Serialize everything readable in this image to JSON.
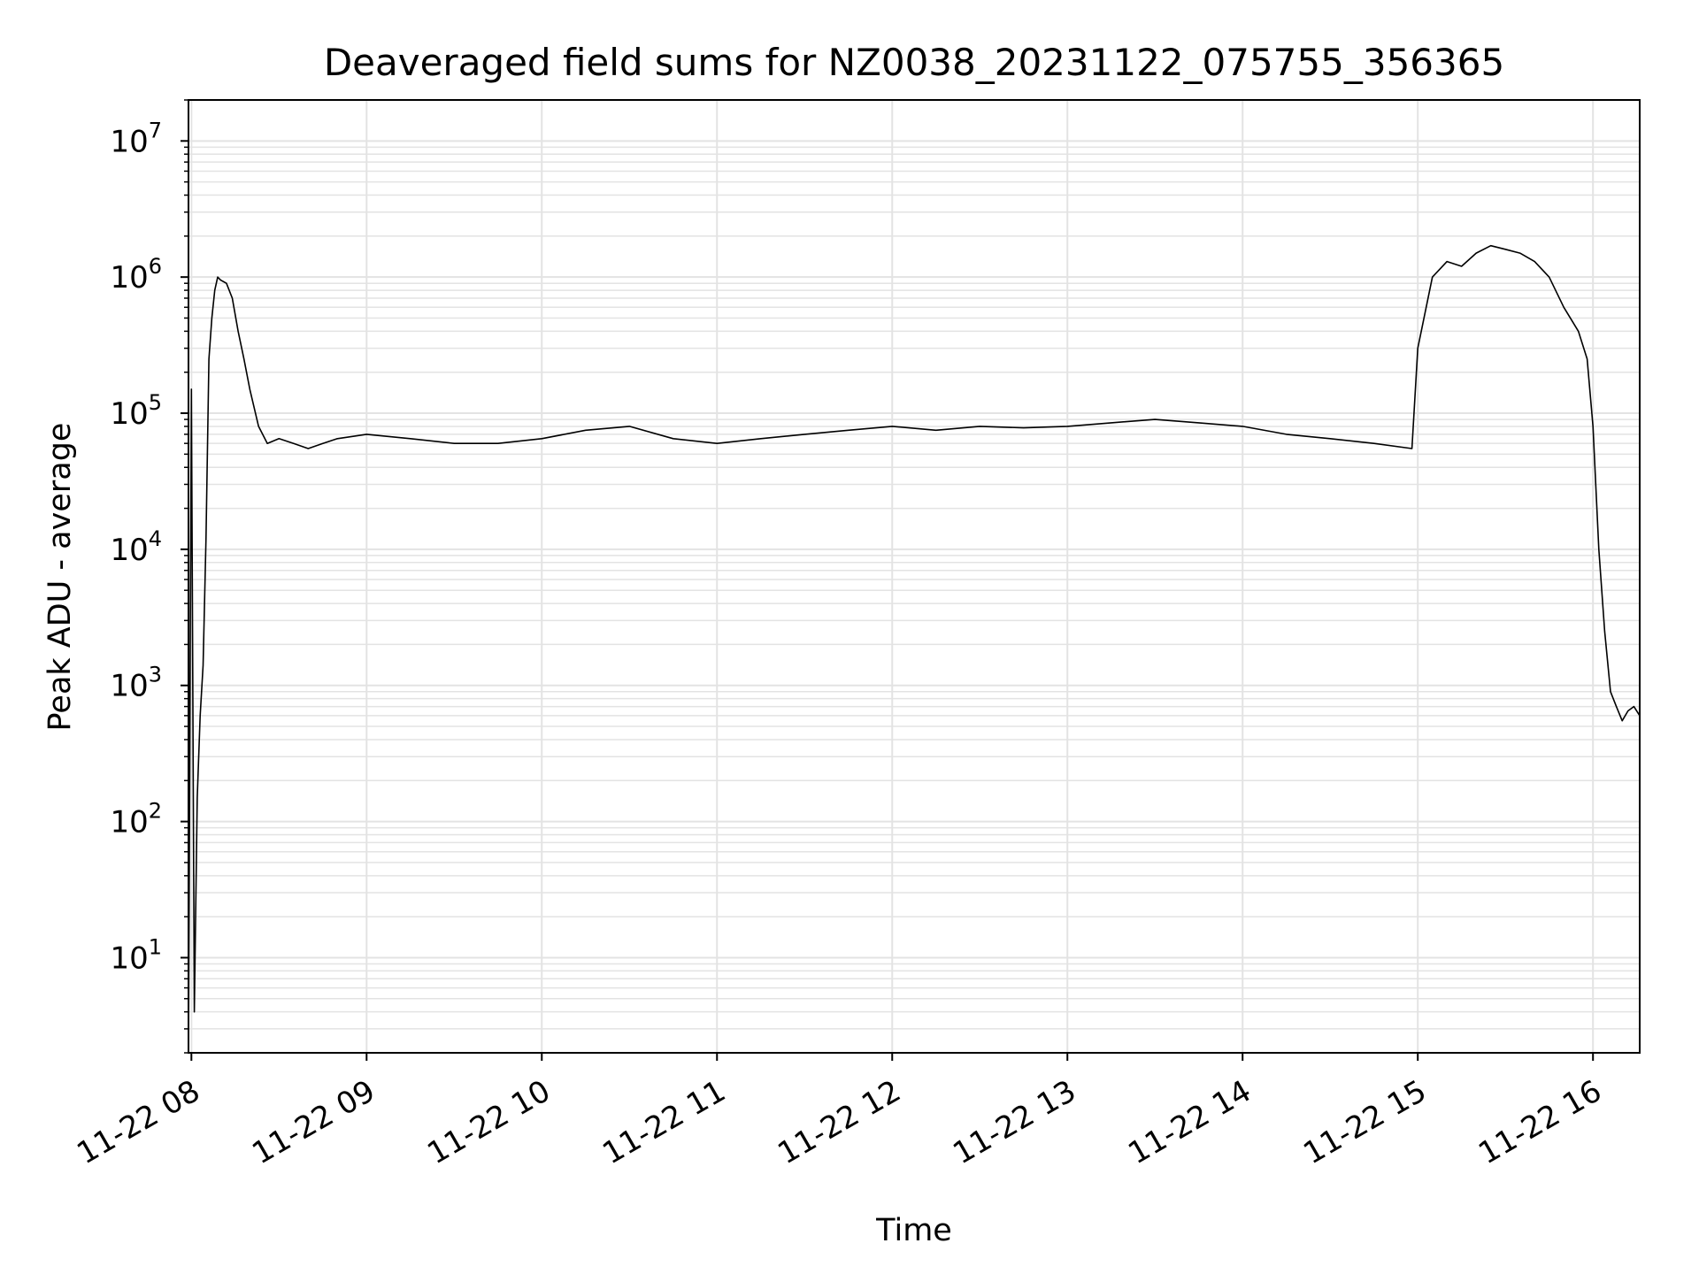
{
  "chart_data": {
    "type": "line",
    "title": "Deaveraged field sums for NZ0038_20231122_075755_356365",
    "xlabel": "Time",
    "ylabel": "Peak ADU - average",
    "yscale": "log",
    "xlim": [
      "2023-11-22 07:59",
      "2023-11-22 16:16"
    ],
    "ylim": [
      2,
      20000000
    ],
    "grid": true,
    "line_color": "#000000",
    "grid_color": "#e3e3e3",
    "x_ticks": [
      {
        "value": "2023-11-22 08:00",
        "label": "11-22 08"
      },
      {
        "value": "2023-11-22 09:00",
        "label": "11-22 09"
      },
      {
        "value": "2023-11-22 10:00",
        "label": "11-22 10"
      },
      {
        "value": "2023-11-22 11:00",
        "label": "11-22 11"
      },
      {
        "value": "2023-11-22 12:00",
        "label": "11-22 12"
      },
      {
        "value": "2023-11-22 13:00",
        "label": "11-22 13"
      },
      {
        "value": "2023-11-22 14:00",
        "label": "11-22 14"
      },
      {
        "value": "2023-11-22 15:00",
        "label": "11-22 15"
      },
      {
        "value": "2023-11-22 16:00",
        "label": "11-22 16"
      }
    ],
    "y_ticks": [
      {
        "value": 10,
        "base": "10",
        "exp": "1"
      },
      {
        "value": 100,
        "base": "10",
        "exp": "2"
      },
      {
        "value": 1000,
        "base": "10",
        "exp": "3"
      },
      {
        "value": 10000,
        "base": "10",
        "exp": "4"
      },
      {
        "value": 100000,
        "base": "10",
        "exp": "5"
      },
      {
        "value": 1000000,
        "base": "10",
        "exp": "6"
      },
      {
        "value": 10000000,
        "base": "10",
        "exp": "7"
      }
    ],
    "series": [
      {
        "x": [
          "2023-11-22 07:59",
          "2023-11-22 08:00",
          "2023-11-22 08:01",
          "2023-11-22 08:02",
          "2023-11-22 08:03",
          "2023-11-22 08:04",
          "2023-11-22 08:05",
          "2023-11-22 08:06",
          "2023-11-22 08:07",
          "2023-11-22 08:08",
          "2023-11-22 08:09",
          "2023-11-22 08:10",
          "2023-11-22 08:12",
          "2023-11-22 08:14",
          "2023-11-22 08:16",
          "2023-11-22 08:18",
          "2023-11-22 08:20",
          "2023-11-22 08:23",
          "2023-11-22 08:26",
          "2023-11-22 08:30",
          "2023-11-22 08:35",
          "2023-11-22 08:40",
          "2023-11-22 08:45",
          "2023-11-22 08:50",
          "2023-11-22 09:00",
          "2023-11-22 09:15",
          "2023-11-22 09:30",
          "2023-11-22 09:45",
          "2023-11-22 10:00",
          "2023-11-22 10:15",
          "2023-11-22 10:30",
          "2023-11-22 10:45",
          "2023-11-22 11:00",
          "2023-11-22 11:15",
          "2023-11-22 11:30",
          "2023-11-22 11:45",
          "2023-11-22 12:00",
          "2023-11-22 12:15",
          "2023-11-22 12:30",
          "2023-11-22 12:45",
          "2023-11-22 13:00",
          "2023-11-22 13:15",
          "2023-11-22 13:30",
          "2023-11-22 13:45",
          "2023-11-22 14:00",
          "2023-11-22 14:15",
          "2023-11-22 14:30",
          "2023-11-22 14:45",
          "2023-11-22 14:58",
          "2023-11-22 15:00",
          "2023-11-22 15:05",
          "2023-11-22 15:10",
          "2023-11-22 15:15",
          "2023-11-22 15:20",
          "2023-11-22 15:25",
          "2023-11-22 15:30",
          "2023-11-22 15:35",
          "2023-11-22 15:40",
          "2023-11-22 15:45",
          "2023-11-22 15:50",
          "2023-11-22 15:55",
          "2023-11-22 15:58",
          "2023-11-22 16:00",
          "2023-11-22 16:02",
          "2023-11-22 16:04",
          "2023-11-22 16:06",
          "2023-11-22 16:08",
          "2023-11-22 16:10",
          "2023-11-22 16:12",
          "2023-11-22 16:14",
          "2023-11-22 16:16"
        ],
        "values": [
          2,
          150000,
          4,
          150,
          600,
          1400,
          12000,
          250000,
          500000,
          800000,
          1000000,
          950000,
          900000,
          700000,
          400000,
          250000,
          150000,
          80000,
          60000,
          65000,
          60000,
          55000,
          60000,
          65000,
          70000,
          65000,
          60000,
          60000,
          65000,
          75000,
          80000,
          65000,
          60000,
          65000,
          70000,
          75000,
          80000,
          75000,
          80000,
          78000,
          80000,
          85000,
          90000,
          85000,
          80000,
          70000,
          65000,
          60000,
          55000,
          300000,
          1000000,
          1300000,
          1200000,
          1500000,
          1700000,
          1600000,
          1500000,
          1300000,
          1000000,
          600000,
          400000,
          250000,
          80000,
          10000,
          2500,
          900,
          700,
          550,
          650,
          700,
          600
        ]
      }
    ]
  }
}
